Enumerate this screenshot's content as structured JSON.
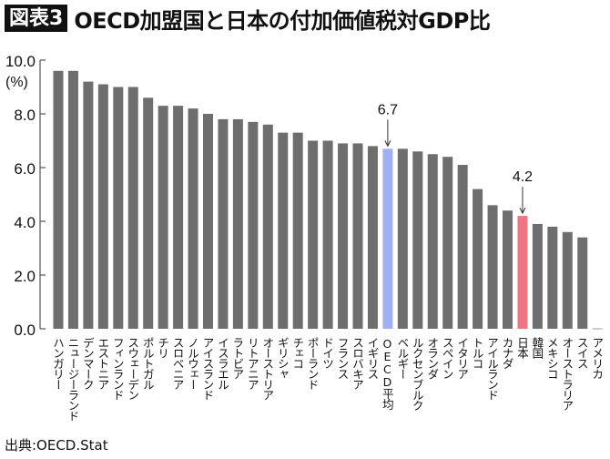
{
  "header": {
    "figure_label": "図表3",
    "title": "OECD加盟国と日本の付加価値税対GDP比"
  },
  "source": "出典:OECD.Stat",
  "colors": {
    "bar": "#6e6e6e",
    "oecd_average": "#9fb1f2",
    "japan": "#ee7581",
    "axis": "#555555"
  },
  "chart_data": {
    "type": "bar",
    "title": "",
    "xlabel": "",
    "ylabel": "(%)",
    "ylim": [
      0,
      10
    ],
    "yticks": [
      "0.0",
      "2.0",
      "4.0",
      "6.0",
      "8.0",
      "10.0"
    ],
    "grid": false,
    "categories": [
      "ハンガリー",
      "ニュージーランド",
      "デンマーク",
      "エストニア",
      "フィンランド",
      "スウェーデン",
      "ポルトガル",
      "チリ",
      "スロベニア",
      "ノルウェー",
      "アイスランド",
      "イスラエル",
      "ラトビア",
      "リトアニア",
      "オーストリア",
      "ギリシャ",
      "チェコ",
      "ポーランド",
      "ドイツ",
      "フランス",
      "スロバキア",
      "イギリス",
      "OECD平均",
      "ベルギー",
      "ルクセンブルク",
      "オランダ",
      "スペイン",
      "イタリア",
      "トルコ",
      "アイルランド",
      "カナダ",
      "日本",
      "韓国",
      "メキシコ",
      "オーストラリア",
      "スイス",
      "アメリカ"
    ],
    "values": [
      9.6,
      9.6,
      9.2,
      9.1,
      9.0,
      9.0,
      8.6,
      8.3,
      8.3,
      8.2,
      8.0,
      7.8,
      7.8,
      7.7,
      7.6,
      7.3,
      7.3,
      7.0,
      7.0,
      6.9,
      6.9,
      6.8,
      6.7,
      6.7,
      6.6,
      6.5,
      6.4,
      6.1,
      5.2,
      4.6,
      4.4,
      4.2,
      3.9,
      3.8,
      3.6,
      3.4,
      0
    ],
    "annotations": [
      {
        "category": "OECD平均",
        "text": "6.7"
      },
      {
        "category": "日本",
        "text": "4.2"
      }
    ],
    "highlight": {
      "OECD平均": "oecd_average",
      "日本": "japan"
    }
  }
}
